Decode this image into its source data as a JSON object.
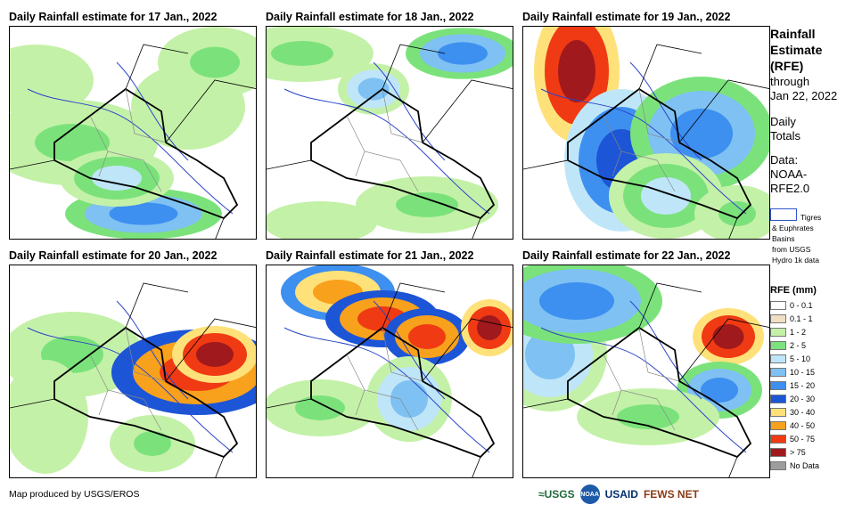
{
  "panels": [
    {
      "title": "Daily Rainfall estimate for 17 Jan., 2022"
    },
    {
      "title": "Daily Rainfall estimate for 18 Jan., 2022"
    },
    {
      "title": "Daily Rainfall estimate for 19 Jan., 2022"
    },
    {
      "title": "Daily Rainfall estimate for 20 Jan., 2022"
    },
    {
      "title": "Daily Rainfall estimate for 21 Jan., 2022"
    },
    {
      "title": "Daily Rainfall estimate for 22 Jan., 2022"
    }
  ],
  "sidebar": {
    "title_line1": "Rainfall",
    "title_line2": "Estimate",
    "title_line3": "(RFE)",
    "through": "through",
    "date": "Jan 22, 2022",
    "daily1": "Daily",
    "daily2": "Totals",
    "data1": "Data:",
    "data2": "NOAA-",
    "data3": "RFE2.0",
    "basin_line1": "Tigres",
    "basin_line2": "& Euphrates",
    "basin_line3": "Basins",
    "basin_line4": "from USGS",
    "basin_line5": "Hydro 1k data"
  },
  "legend": {
    "title": "RFE (mm)",
    "items": [
      {
        "label": "0 - 0.1",
        "color": "#ffffff"
      },
      {
        "label": "0.1 - 1",
        "color": "#f1dfc4"
      },
      {
        "label": "1 - 2",
        "color": "#c4f1a8"
      },
      {
        "label": "2 - 5",
        "color": "#7be27b"
      },
      {
        "label": "5 - 10",
        "color": "#bfe6f8"
      },
      {
        "label": "10 - 15",
        "color": "#7ec1f2"
      },
      {
        "label": "15 - 20",
        "color": "#3d8ff0"
      },
      {
        "label": "20 - 30",
        "color": "#1c55d6"
      },
      {
        "label": "30 - 40",
        "color": "#ffe17a"
      },
      {
        "label": "40 - 50",
        "color": "#f8a11c"
      },
      {
        "label": "50 - 75",
        "color": "#f03a14"
      },
      {
        "label": "> 75",
        "color": "#a0191c"
      },
      {
        "label": "No Data",
        "color": "#9d9d9d"
      }
    ]
  },
  "footer": {
    "credit": "Map produced by USGS/EROS",
    "logo_usgs": "≈USGS",
    "logo_noaa": "NOAA",
    "logo_usaid": "USAID",
    "logo_fews": "FEWS NET"
  }
}
